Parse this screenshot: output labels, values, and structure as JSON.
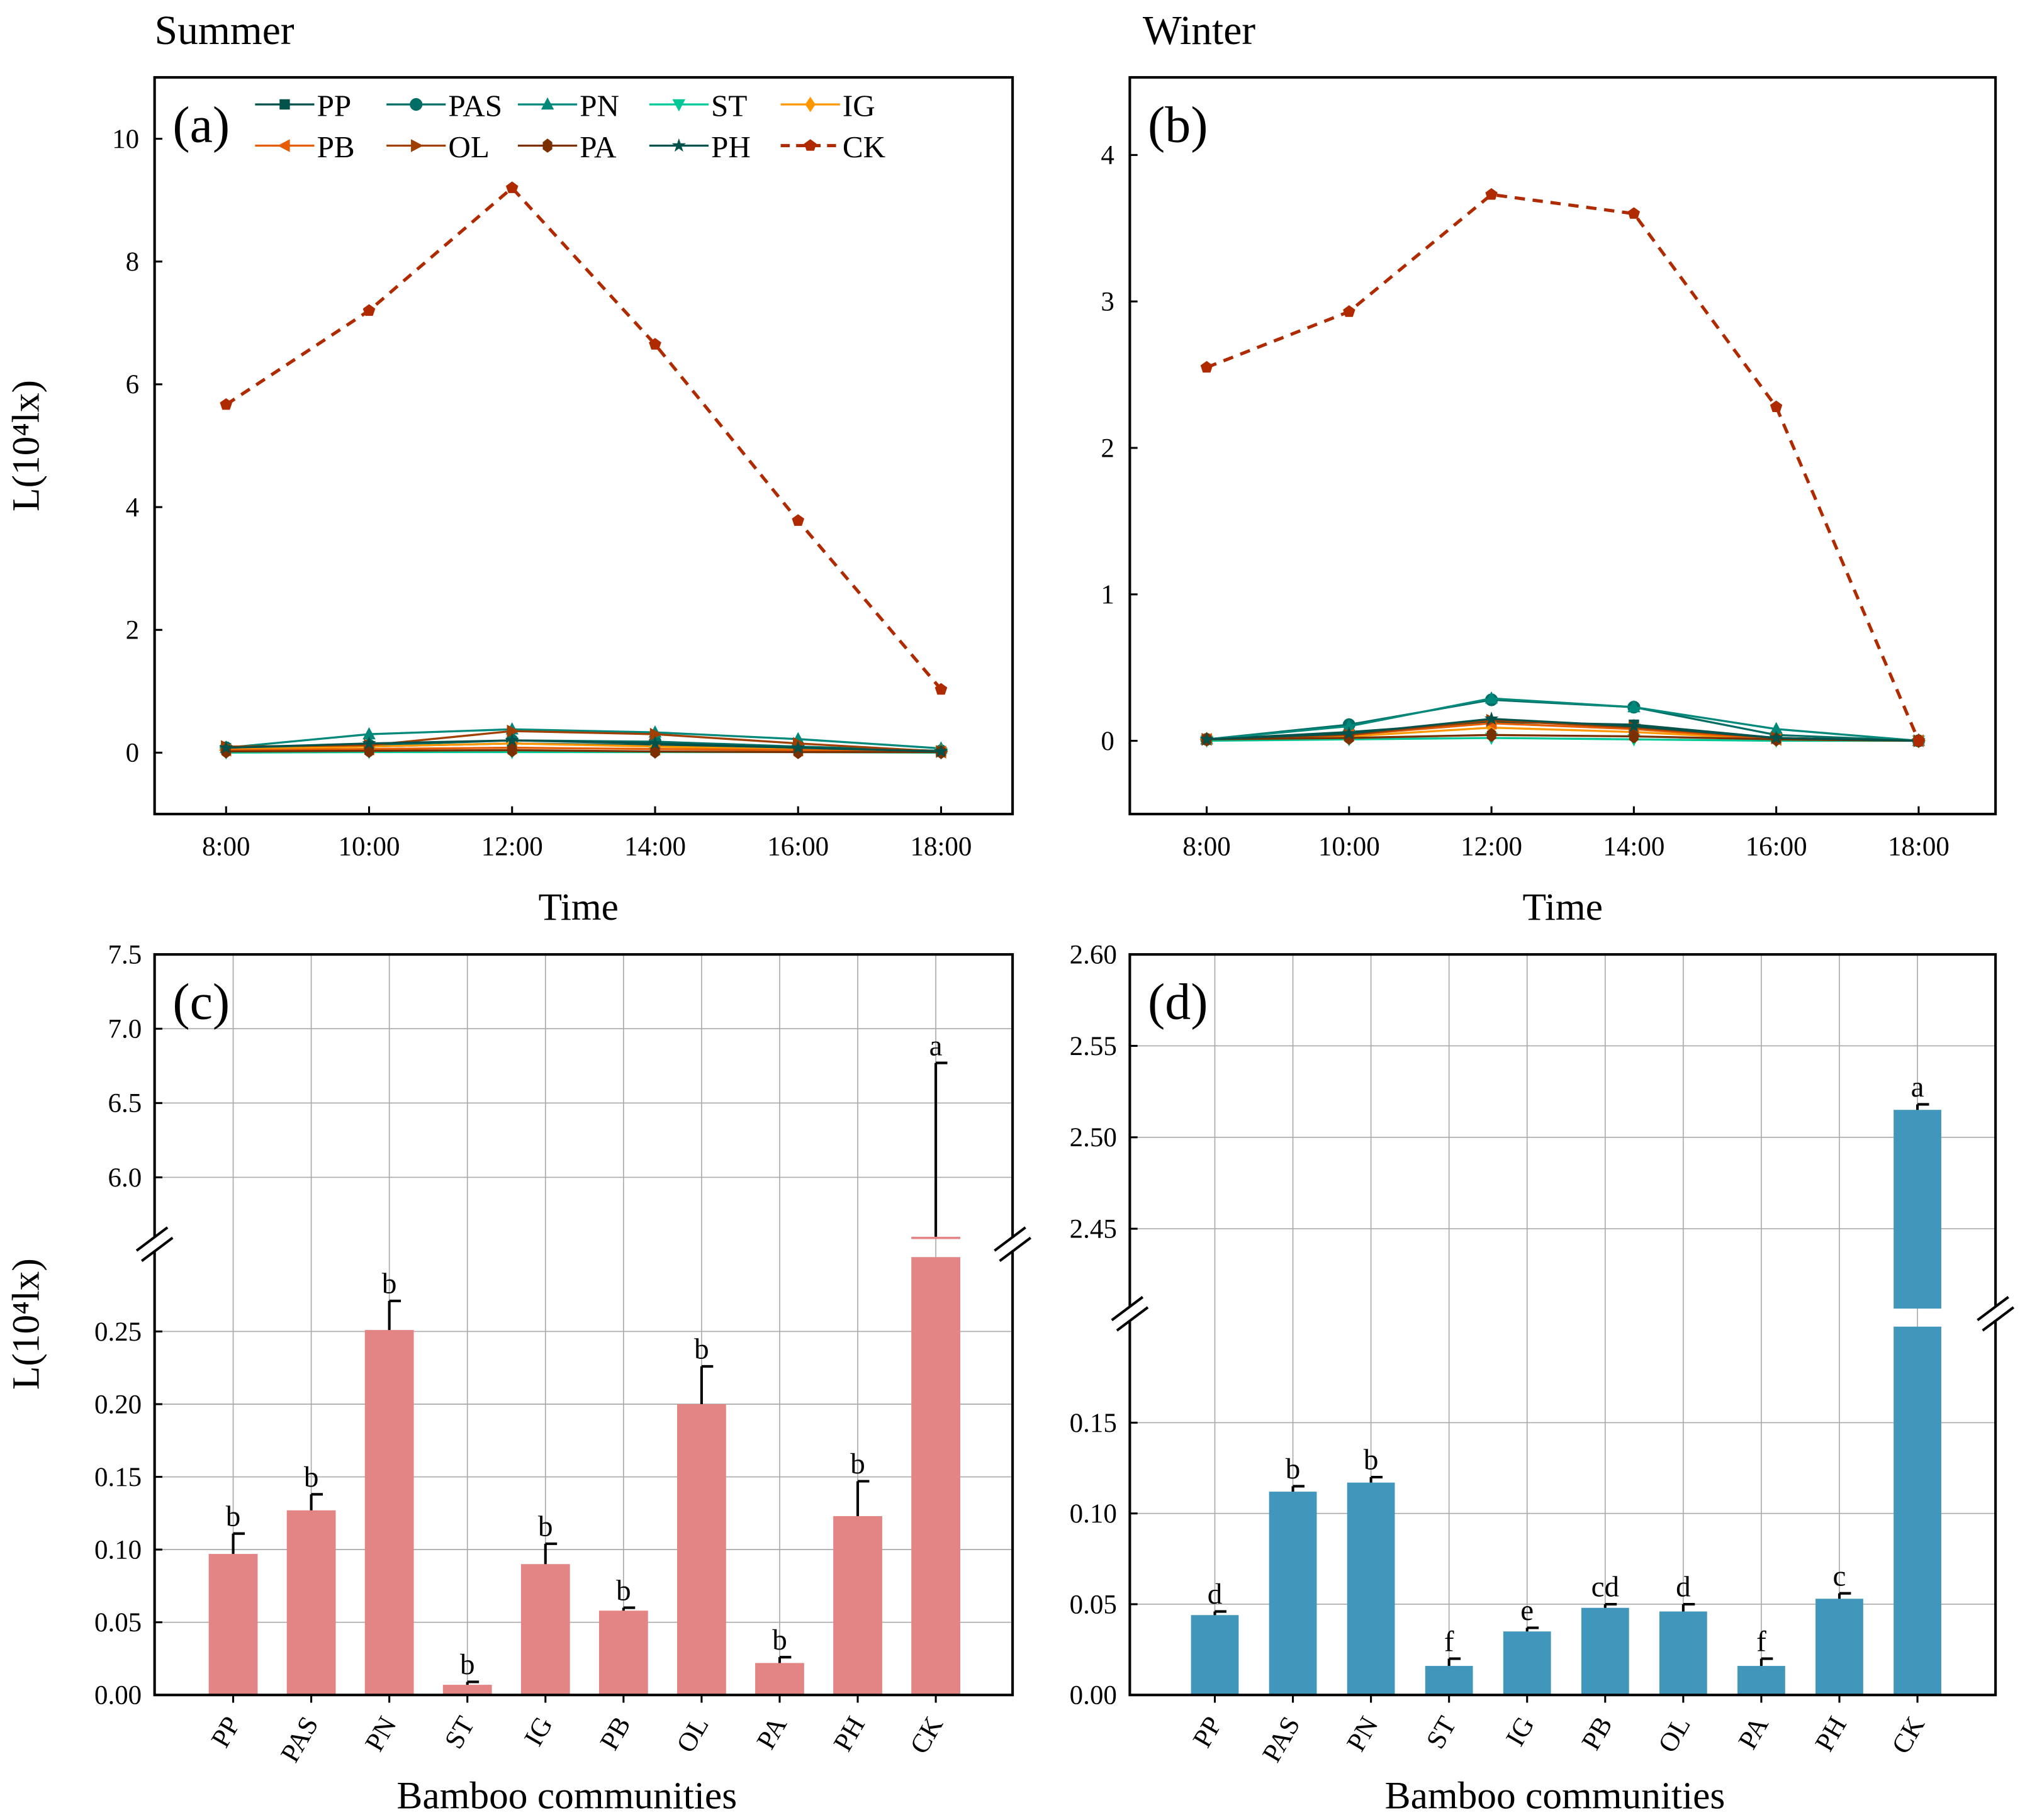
{
  "titles": {
    "summer": "Summer",
    "winter": "Winter"
  },
  "axis_labels": {
    "y": "L(10⁴lx)",
    "time": "Time",
    "communities": "Bamboo communities"
  },
  "colors": {
    "PP": "#00524a",
    "PAS": "#006e64",
    "PN": "#00897b",
    "ST": "#00c897",
    "IG": "#ff9800",
    "PB": "#e65c00",
    "OL": "#a04000",
    "PA": "#7a3000",
    "PH": "#00524a",
    "CK": "#b02a00",
    "bar_summer": "#e48585",
    "bar_winter": "#4196bb"
  },
  "chart_data": [
    {
      "id": "a",
      "panel_label": "(a)",
      "type": "line",
      "title": "Summer",
      "xlabel": "Time",
      "ylabel": "L(10⁴lx)",
      "x": [
        8,
        10,
        12,
        14,
        16,
        18
      ],
      "x_tick_labels": [
        "8:00",
        "10:00",
        "12:00",
        "14:00",
        "16:00",
        "18:00"
      ],
      "xlim": [
        7,
        19
      ],
      "ylim": [
        -1,
        11
      ],
      "y_ticks": [
        0,
        2,
        4,
        6,
        8,
        10
      ],
      "grid": false,
      "legend": "top, 2 rows",
      "series": [
        {
          "name": "PP",
          "marker": "square",
          "values": [
            0.07,
            0.1,
            0.15,
            0.12,
            0.08,
            0.02
          ]
        },
        {
          "name": "PAS",
          "marker": "circle",
          "values": [
            0.08,
            0.12,
            0.2,
            0.18,
            0.1,
            0.03
          ]
        },
        {
          "name": "PN",
          "marker": "triangle-up",
          "values": [
            0.08,
            0.3,
            0.38,
            0.33,
            0.22,
            0.07
          ]
        },
        {
          "name": "ST",
          "marker": "triangle-down",
          "values": [
            0.0,
            0.01,
            0.01,
            0.01,
            0.01,
            0.0
          ]
        },
        {
          "name": "IG",
          "marker": "diamond",
          "values": [
            0.05,
            0.1,
            0.15,
            0.1,
            0.05,
            0.02
          ]
        },
        {
          "name": "PB",
          "marker": "triangle-left",
          "values": [
            0.04,
            0.06,
            0.08,
            0.06,
            0.04,
            0.01
          ]
        },
        {
          "name": "OL",
          "marker": "triangle-right",
          "values": [
            0.1,
            0.12,
            0.35,
            0.3,
            0.15,
            0.02
          ]
        },
        {
          "name": "PA",
          "marker": "hexagon",
          "values": [
            0.02,
            0.03,
            0.04,
            0.02,
            0.01,
            0.01
          ]
        },
        {
          "name": "PH",
          "marker": "star",
          "values": [
            0.08,
            0.15,
            0.2,
            0.15,
            0.08,
            0.02
          ]
        },
        {
          "name": "CK",
          "marker": "pentagon",
          "dashed": true,
          "values": [
            5.67,
            7.2,
            9.2,
            6.65,
            3.78,
            1.03
          ]
        }
      ]
    },
    {
      "id": "b",
      "panel_label": "(b)",
      "type": "line",
      "title": "Winter",
      "xlabel": "Time",
      "ylabel": "",
      "x": [
        8,
        10,
        12,
        14,
        16,
        18
      ],
      "x_tick_labels": [
        "8:00",
        "10:00",
        "12:00",
        "14:00",
        "16:00",
        "18:00"
      ],
      "xlim": [
        6.92,
        19.08
      ],
      "ylim": [
        -0.5,
        4.53
      ],
      "y_ticks": [
        0,
        1,
        2,
        3,
        4
      ],
      "grid": false,
      "series": [
        {
          "name": "PP",
          "marker": "square",
          "values": [
            0.01,
            0.06,
            0.13,
            0.11,
            0.02,
            0.0
          ]
        },
        {
          "name": "PAS",
          "marker": "circle",
          "values": [
            0.01,
            0.11,
            0.28,
            0.23,
            0.04,
            0.0
          ]
        },
        {
          "name": "PN",
          "marker": "triangle-up",
          "values": [
            0.01,
            0.1,
            0.29,
            0.23,
            0.08,
            0.0
          ]
        },
        {
          "name": "ST",
          "marker": "triangle-down",
          "values": [
            0.0,
            0.01,
            0.02,
            0.01,
            0.0,
            0.0
          ]
        },
        {
          "name": "IG",
          "marker": "diamond",
          "values": [
            0.01,
            0.03,
            0.09,
            0.06,
            0.01,
            0.0
          ]
        },
        {
          "name": "PB",
          "marker": "triangle-left",
          "values": [
            0.01,
            0.04,
            0.12,
            0.08,
            0.01,
            0.0
          ]
        },
        {
          "name": "OL",
          "marker": "triangle-right",
          "values": [
            0.01,
            0.04,
            0.14,
            0.09,
            0.02,
            0.0
          ]
        },
        {
          "name": "PA",
          "marker": "hexagon",
          "values": [
            0.01,
            0.02,
            0.04,
            0.03,
            0.01,
            0.0
          ]
        },
        {
          "name": "PH",
          "marker": "star",
          "values": [
            0.01,
            0.05,
            0.15,
            0.1,
            0.02,
            0.0
          ]
        },
        {
          "name": "CK",
          "marker": "pentagon",
          "dashed": true,
          "values": [
            2.55,
            2.93,
            3.73,
            3.6,
            2.28,
            0.0
          ]
        }
      ]
    },
    {
      "id": "c",
      "panel_label": "(c)",
      "type": "bar",
      "xlabel": "Bamboo communities",
      "ylabel": "L(10⁴lx)",
      "categories": [
        "PP",
        "PAS",
        "PN",
        "ST",
        "IG",
        "PB",
        "OL",
        "PA",
        "PH",
        "CK"
      ],
      "values": [
        0.097,
        0.127,
        0.251,
        0.007,
        0.09,
        0.058,
        0.2,
        0.022,
        0.123,
        5.6
      ],
      "errors": [
        0.014,
        0.011,
        0.02,
        0.002,
        0.014,
        0.002,
        0.026,
        0.004,
        0.024,
        1.17
      ],
      "letters": [
        "b",
        "b",
        "b",
        "b",
        "b",
        "b",
        "b",
        "b",
        "b",
        "a"
      ],
      "broken_axis": {
        "lower": [
          0,
          0.31
        ],
        "upper": [
          5.55,
          7.5
        ]
      },
      "y_ticks_lower": [
        "0.00",
        "0.05",
        "0.10",
        "0.15",
        "0.20",
        "0.25"
      ],
      "y_ticks_upper": [
        "6.0",
        "6.5",
        "7.0",
        "7.5"
      ],
      "grid": true
    },
    {
      "id": "d",
      "panel_label": "(d)",
      "type": "bar",
      "xlabel": "Bamboo communities",
      "ylabel": "",
      "categories": [
        "PP",
        "PAS",
        "PN",
        "ST",
        "IG",
        "PB",
        "OL",
        "PA",
        "PH",
        "CK"
      ],
      "values": [
        0.044,
        0.112,
        0.117,
        0.016,
        0.035,
        0.048,
        0.046,
        0.016,
        0.053,
        2.515
      ],
      "errors": [
        0.002,
        0.003,
        0.003,
        0.004,
        0.002,
        0.002,
        0.004,
        0.004,
        0.003,
        0.003
      ],
      "letters": [
        "d",
        "b",
        "b",
        "f",
        "e",
        "cd",
        "d",
        "f",
        "c",
        "a"
      ],
      "broken_axis": {
        "lower": [
          0,
          0.21
        ],
        "upper": [
          2.4035,
          2.6
        ]
      },
      "y_ticks_lower": [
        "0.00",
        "0.05",
        "0.10",
        "0.15"
      ],
      "y_ticks_upper": [
        "2.45",
        "2.50",
        "2.55",
        "2.60"
      ],
      "grid": true
    }
  ]
}
